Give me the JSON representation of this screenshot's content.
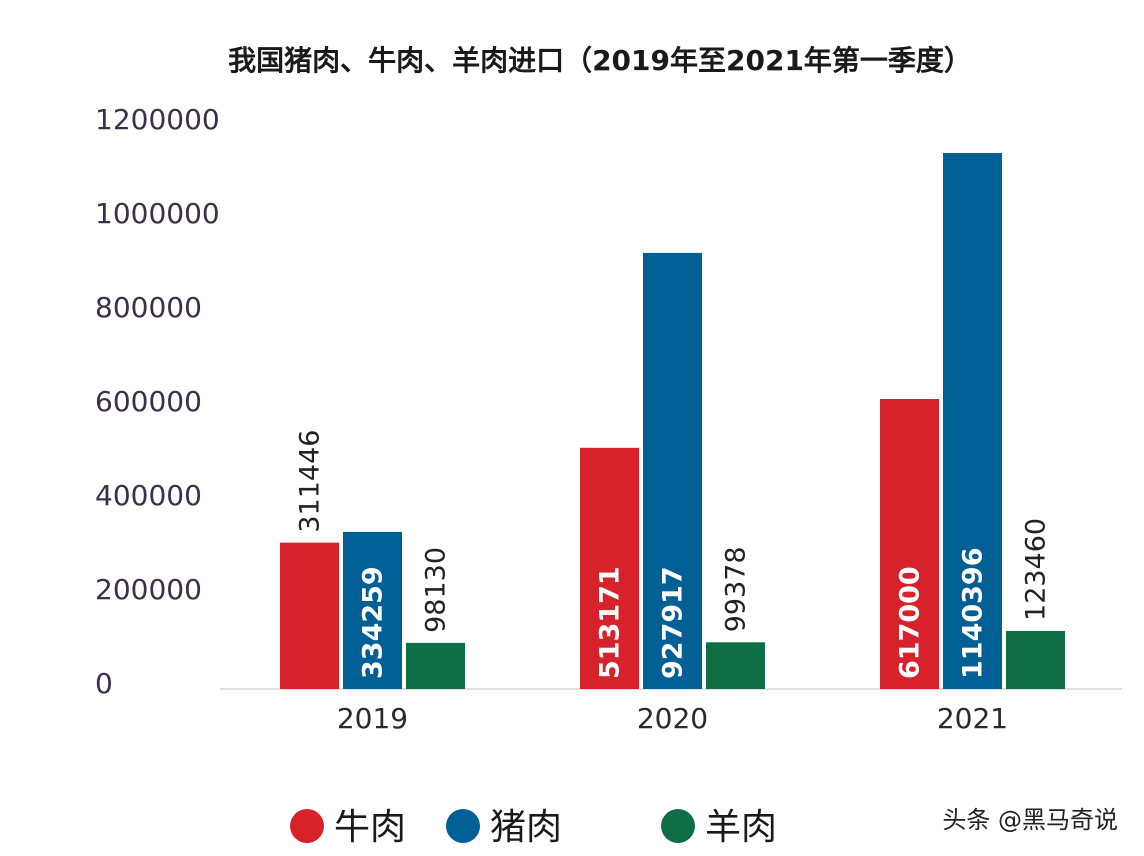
{
  "chart_data": {
    "type": "bar",
    "title": "我国猪肉、牛肉、羊肉进口（2019年至2021年第一季度）",
    "categories": [
      "2019",
      "2020",
      "2021"
    ],
    "series": [
      {
        "name": "牛肉",
        "color": "#d7212b",
        "values": [
          311446,
          513171,
          617000
        ]
      },
      {
        "name": "猪肉",
        "color": "#005f95",
        "values": [
          334259,
          927917,
          1140396
        ]
      },
      {
        "name": "羊肉",
        "color": "#0f6e46",
        "values": [
          98130,
          99378,
          123460
        ]
      }
    ],
    "yticks": [
      "0",
      "200000",
      "400000",
      "600000",
      "800000",
      "1000000",
      "1200000"
    ],
    "ylim": [
      0,
      1200000
    ],
    "xlabel": "",
    "ylabel": "",
    "grid": false,
    "legend_position": "bottom",
    "data_labels": true
  },
  "watermark": "头条 @黑马奇说"
}
